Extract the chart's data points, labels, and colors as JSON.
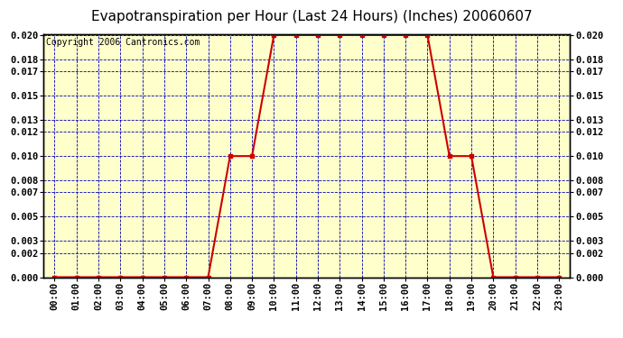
{
  "title": "Evapotranspiration per Hour (Last 24 Hours) (Inches) 20060607",
  "copyright": "Copyright 2006 Cantronics.com",
  "x_labels": [
    "00:00",
    "01:00",
    "02:00",
    "03:00",
    "04:00",
    "05:00",
    "06:00",
    "07:00",
    "08:00",
    "09:00",
    "10:00",
    "11:00",
    "12:00",
    "13:00",
    "14:00",
    "15:00",
    "16:00",
    "17:00",
    "18:00",
    "19:00",
    "20:00",
    "21:00",
    "22:00",
    "23:00"
  ],
  "y_values": [
    0.0,
    0.0,
    0.0,
    0.0,
    0.0,
    0.0,
    0.0,
    0.0,
    0.01,
    0.01,
    0.02,
    0.02,
    0.02,
    0.02,
    0.02,
    0.02,
    0.02,
    0.02,
    0.01,
    0.01,
    0.0,
    0.0,
    0.0,
    0.0
  ],
  "y_ticks": [
    0.0,
    0.002,
    0.003,
    0.005,
    0.007,
    0.008,
    0.01,
    0.012,
    0.013,
    0.015,
    0.017,
    0.018,
    0.02
  ],
  "y_min": 0.0,
  "y_max": 0.02,
  "line_color": "#cc0000",
  "marker_color": "#cc0000",
  "grid_color": "#0000bb",
  "background_color": "#ffffcc",
  "title_fontsize": 11,
  "copyright_fontsize": 7,
  "tick_fontsize": 7.5,
  "tick_color": "black"
}
